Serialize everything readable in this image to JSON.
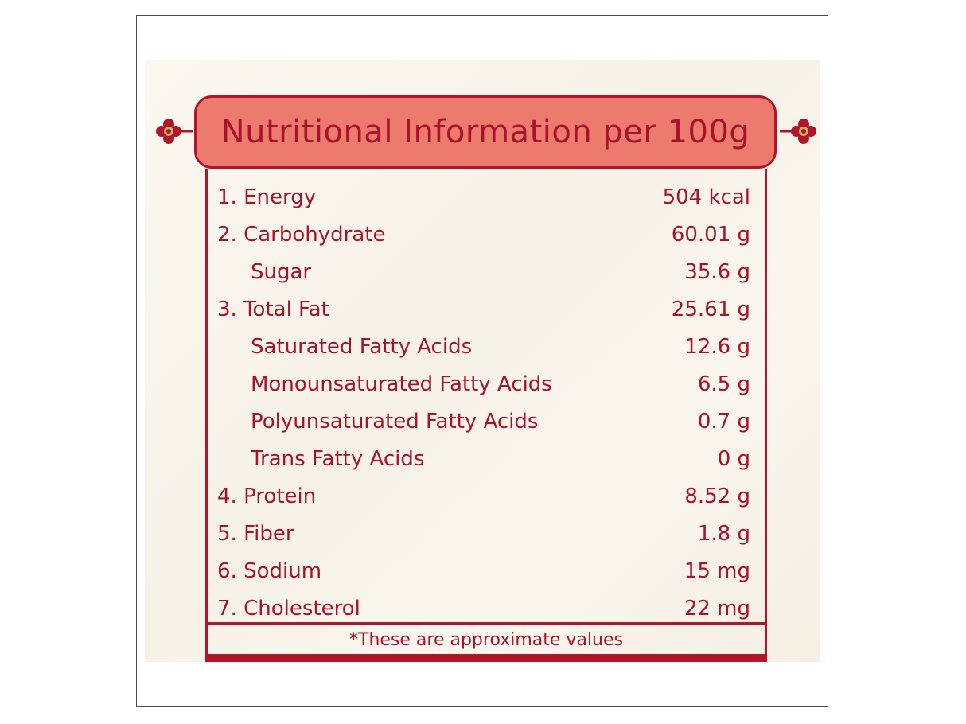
{
  "title": "Nutritional Information per 100g",
  "rows": [
    {
      "label": "1. Energy",
      "value": "504 kcal",
      "sub": false
    },
    {
      "label": "2. Carbohydrate",
      "value": "60.01 g",
      "sub": false
    },
    {
      "label": "Sugar",
      "value": "35.6 g",
      "sub": true
    },
    {
      "label": "3. Total Fat",
      "value": "25.61 g",
      "sub": false
    },
    {
      "label": "Saturated Fatty Acids",
      "value": "12.6 g",
      "sub": true
    },
    {
      "label": "Monounsaturated Fatty Acids",
      "value": "6.5 g",
      "sub": true
    },
    {
      "label": "Polyunsaturated Fatty Acids",
      "value": "0.7 g",
      "sub": true
    },
    {
      "label": "Trans Fatty Acids",
      "value": "0 g",
      "sub": true
    },
    {
      "label": "4. Protein",
      "value": "8.52 g",
      "sub": false
    },
    {
      "label": "5. Fiber",
      "value": "1.8 g",
      "sub": false
    },
    {
      "label": "6. Sodium",
      "value": "15 mg",
      "sub": false
    },
    {
      "label": "7. Cholesterol",
      "value": "22 mg",
      "sub": false
    }
  ],
  "footnote": "*These are approximate values",
  "colors": {
    "accent": "#b0152d",
    "banner": "#ec7a6d",
    "text": "#a8122a"
  }
}
